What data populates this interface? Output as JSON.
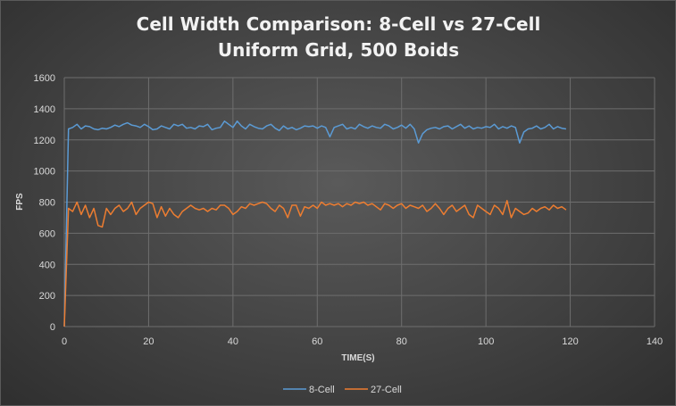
{
  "chart_data": {
    "type": "line",
    "title": "Cell Width Comparison: 8-Cell vs 27-Cell",
    "subtitle": "Uniform Grid, 500 Boids",
    "xlabel": "TIME(S)",
    "ylabel": "FPS",
    "xlim": [
      0,
      140
    ],
    "ylim": [
      0,
      1600
    ],
    "xticks": [
      0,
      20,
      40,
      60,
      80,
      100,
      120,
      140
    ],
    "yticks": [
      0,
      200,
      400,
      600,
      800,
      1000,
      1200,
      1400,
      1600
    ],
    "grid": true,
    "legend_position": "bottom",
    "series": [
      {
        "name": "8-Cell",
        "color": "#5b9bd5",
        "x": [
          0,
          1,
          2,
          3,
          4,
          5,
          6,
          7,
          8,
          9,
          10,
          11,
          12,
          13,
          14,
          15,
          16,
          17,
          18,
          19,
          20,
          21,
          22,
          23,
          24,
          25,
          26,
          27,
          28,
          29,
          30,
          31,
          32,
          33,
          34,
          35,
          36,
          37,
          38,
          39,
          40,
          41,
          42,
          43,
          44,
          45,
          46,
          47,
          48,
          49,
          50,
          51,
          52,
          53,
          54,
          55,
          56,
          57,
          58,
          59,
          60,
          61,
          62,
          63,
          64,
          65,
          66,
          67,
          68,
          69,
          70,
          71,
          72,
          73,
          74,
          75,
          76,
          77,
          78,
          79,
          80,
          81,
          82,
          83,
          84,
          85,
          86,
          87,
          88,
          89,
          90,
          91,
          92,
          93,
          94,
          95,
          96,
          97,
          98,
          99,
          100,
          101,
          102,
          103,
          104,
          105,
          106,
          107,
          108,
          109,
          110,
          111,
          112,
          113,
          114,
          115,
          116,
          117,
          118,
          119
        ],
        "y": [
          0,
          1270,
          1280,
          1300,
          1270,
          1290,
          1285,
          1270,
          1265,
          1275,
          1270,
          1280,
          1295,
          1285,
          1300,
          1310,
          1295,
          1290,
          1280,
          1300,
          1285,
          1265,
          1270,
          1290,
          1280,
          1270,
          1300,
          1290,
          1300,
          1275,
          1280,
          1270,
          1290,
          1285,
          1300,
          1265,
          1275,
          1280,
          1320,
          1300,
          1280,
          1320,
          1290,
          1270,
          1300,
          1285,
          1275,
          1270,
          1290,
          1300,
          1275,
          1260,
          1290,
          1270,
          1280,
          1265,
          1275,
          1290,
          1285,
          1290,
          1275,
          1290,
          1280,
          1220,
          1280,
          1290,
          1300,
          1270,
          1280,
          1270,
          1300,
          1285,
          1275,
          1290,
          1280,
          1275,
          1300,
          1290,
          1270,
          1280,
          1295,
          1275,
          1300,
          1270,
          1180,
          1240,
          1265,
          1275,
          1280,
          1270,
          1285,
          1290,
          1270,
          1285,
          1300,
          1275,
          1290,
          1270,
          1280,
          1275,
          1285,
          1280,
          1300,
          1270,
          1285,
          1275,
          1290,
          1280,
          1180,
          1250,
          1270,
          1275,
          1290,
          1270,
          1280,
          1300,
          1270,
          1285,
          1275,
          1270
        ]
      },
      {
        "name": "27-Cell",
        "color": "#ed7d31",
        "x": [
          0,
          1,
          2,
          3,
          4,
          5,
          6,
          7,
          8,
          9,
          10,
          11,
          12,
          13,
          14,
          15,
          16,
          17,
          18,
          19,
          20,
          21,
          22,
          23,
          24,
          25,
          26,
          27,
          28,
          29,
          30,
          31,
          32,
          33,
          34,
          35,
          36,
          37,
          38,
          39,
          40,
          41,
          42,
          43,
          44,
          45,
          46,
          47,
          48,
          49,
          50,
          51,
          52,
          53,
          54,
          55,
          56,
          57,
          58,
          59,
          60,
          61,
          62,
          63,
          64,
          65,
          66,
          67,
          68,
          69,
          70,
          71,
          72,
          73,
          74,
          75,
          76,
          77,
          78,
          79,
          80,
          81,
          82,
          83,
          84,
          85,
          86,
          87,
          88,
          89,
          90,
          91,
          92,
          93,
          94,
          95,
          96,
          97,
          98,
          99,
          100,
          101,
          102,
          103,
          104,
          105,
          106,
          107,
          108,
          109,
          110,
          111,
          112,
          113,
          114,
          115,
          116,
          117,
          118,
          119
        ],
        "y": [
          0,
          760,
          740,
          800,
          720,
          780,
          700,
          760,
          650,
          640,
          760,
          720,
          760,
          780,
          740,
          760,
          800,
          720,
          760,
          780,
          800,
          790,
          700,
          770,
          710,
          760,
          720,
          700,
          740,
          760,
          780,
          760,
          750,
          760,
          740,
          760,
          750,
          780,
          780,
          760,
          720,
          740,
          770,
          760,
          790,
          780,
          790,
          800,
          790,
          760,
          740,
          780,
          760,
          700,
          780,
          780,
          710,
          770,
          760,
          780,
          760,
          800,
          780,
          790,
          780,
          790,
          770,
          790,
          780,
          800,
          790,
          800,
          780,
          790,
          770,
          750,
          790,
          780,
          760,
          780,
          790,
          760,
          780,
          770,
          760,
          780,
          740,
          760,
          790,
          760,
          720,
          760,
          780,
          740,
          760,
          780,
          720,
          700,
          780,
          760,
          740,
          720,
          780,
          760,
          720,
          810,
          700,
          760,
          740,
          720,
          730,
          760,
          740,
          760,
          770,
          750,
          780,
          760,
          770,
          750
        ]
      }
    ]
  }
}
